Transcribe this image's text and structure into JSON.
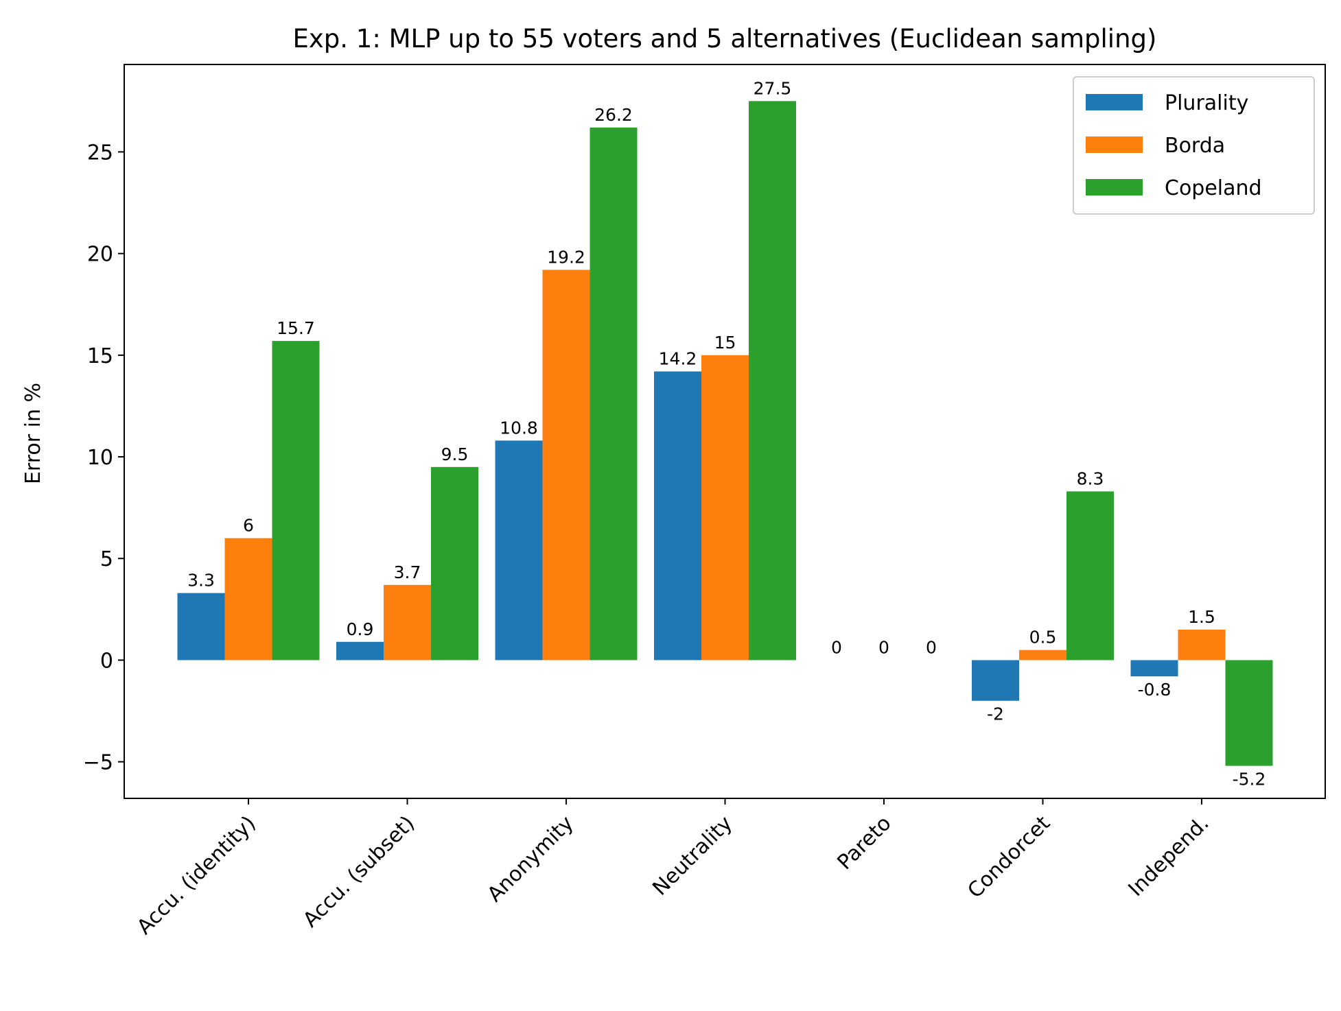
{
  "chart_data": {
    "type": "bar",
    "title": "Exp. 1: MLP up to 55 voters and 5 alternatives (Euclidean sampling)",
    "xlabel": "",
    "ylabel": "Error in %",
    "ylim": [
      -6.8,
      29.3
    ],
    "yticks": [
      -5,
      0,
      5,
      10,
      15,
      20,
      25
    ],
    "ytick_labels": [
      "−5",
      "0",
      "5",
      "10",
      "15",
      "20",
      "25"
    ],
    "categories": [
      "Accu. (identity)",
      "Accu. (subset)",
      "Anonymity",
      "Neutrality",
      "Pareto",
      "Condorcet",
      "Independ."
    ],
    "series": [
      {
        "name": "Plurality",
        "color": "#1f77b4",
        "values": [
          3.3,
          0.9,
          10.8,
          14.2,
          0,
          -2,
          -0.8
        ],
        "labels": [
          "3.3",
          "0.9",
          "10.8",
          "14.2",
          "0",
          "-2",
          "-0.8"
        ]
      },
      {
        "name": "Borda",
        "color": "#ff7f0e",
        "values": [
          6,
          3.7,
          19.2,
          15,
          0,
          0.5,
          1.5
        ],
        "labels": [
          "6",
          "3.7",
          "19.2",
          "15",
          "0",
          "0.5",
          "1.5"
        ]
      },
      {
        "name": "Copeland",
        "color": "#2ca02c",
        "values": [
          15.7,
          9.5,
          26.2,
          27.5,
          0,
          8.3,
          -5.2
        ],
        "labels": [
          "15.7",
          "9.5",
          "26.2",
          "27.5",
          "0",
          "8.3",
          "-5.2"
        ]
      }
    ],
    "legend_position": "top-right",
    "grid": false
  }
}
